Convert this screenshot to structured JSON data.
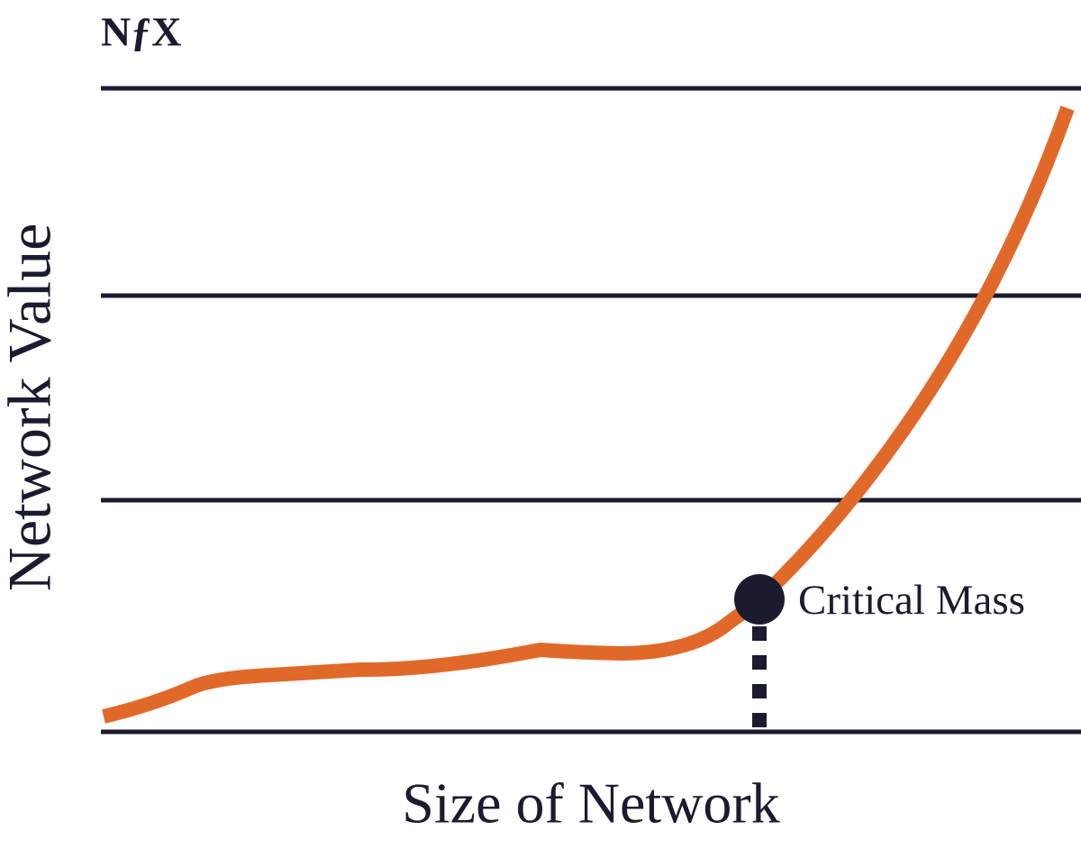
{
  "logo": "NƒX",
  "y_axis_label": "Network Value",
  "x_axis_label": "Size of Network",
  "annotation": "Critical Mass"
}
